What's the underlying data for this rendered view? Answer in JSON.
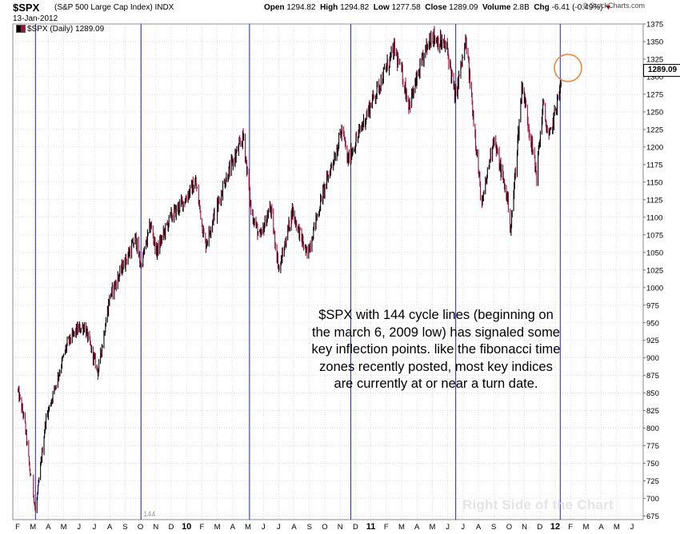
{
  "header": {
    "symbol": "$SPX",
    "symbol_desc": "(S&P 500 Large Cap Index) INDX",
    "date": "13-Jan-2012",
    "open_label": "Open",
    "open": "1294.82",
    "high_label": "High",
    "high": "1294.82",
    "low_label": "Low",
    "low": "1277.58",
    "close_label": "Close",
    "close": "1289.09",
    "volume_label": "Volume",
    "volume": "2.8B",
    "chg_label": "Chg",
    "chg": "-6.41 (-0.49%)",
    "brand": "© StockCharts.com",
    "legend": "$SPX (Daily) 1289.09"
  },
  "annotation": {
    "note_lines": [
      "$SPX with 144 cycle lines (beginning on",
      "the march 6, 2009 low) has signaled some",
      "key inflection points.  like the fibonacci time",
      "zones recently posted, most key indices",
      "are currently at or near a turn date."
    ],
    "cycle_label": "144",
    "watermark": "Right Side of the Chart",
    "last_price": "1289.09"
  },
  "colors": {
    "up": "#000000",
    "down": "#a0103a",
    "cycle_line": "#2020c0",
    "grid": "#c8c8c8",
    "circle": "#f08030"
  },
  "chart_data": {
    "type": "line",
    "title": "",
    "xlabel": "",
    "ylabel": "",
    "ylim": [
      670,
      1375
    ],
    "y_ticks": [
      675,
      700,
      725,
      750,
      775,
      800,
      825,
      850,
      875,
      900,
      925,
      950,
      975,
      1000,
      1025,
      1050,
      1075,
      1100,
      1125,
      1150,
      1175,
      1200,
      1225,
      1250,
      1275,
      1300,
      1325,
      1350,
      1375
    ],
    "x_tick_labels": [
      "F",
      "M",
      "A",
      "M",
      "J",
      "J",
      "A",
      "S",
      "O",
      "N",
      "D",
      "10",
      "F",
      "M",
      "A",
      "M",
      "J",
      "J",
      "A",
      "S",
      "O",
      "N",
      "D",
      "11",
      "F",
      "M",
      "A",
      "M",
      "J",
      "J",
      "A",
      "S",
      "O",
      "N",
      "D",
      "12",
      "F",
      "M",
      "A",
      "M",
      "J"
    ],
    "x_tick_bold": [
      "10",
      "11",
      "12"
    ],
    "series": [
      {
        "x": [
          "2009-02-01",
          "2009-02-15",
          "2009-03-06",
          "2009-03-26",
          "2009-04-15",
          "2009-05-08",
          "2009-05-28",
          "2009-06-12",
          "2009-07-08",
          "2009-07-31",
          "2009-08-27",
          "2009-09-22",
          "2009-10-02",
          "2009-10-21",
          "2009-11-02",
          "2009-11-30",
          "2009-12-28",
          "2010-01-19",
          "2010-02-08",
          "2010-03-15",
          "2010-04-23",
          "2010-05-07",
          "2010-05-25",
          "2010-06-15",
          "2010-07-02",
          "2010-07-28",
          "2010-08-27",
          "2010-09-30",
          "2010-11-05",
          "2010-11-16",
          "2010-12-31",
          "2011-02-18",
          "2011-03-16",
          "2011-04-29",
          "2011-05-31",
          "2011-06-16",
          "2011-07-07",
          "2011-08-08",
          "2011-08-31",
          "2011-09-30",
          "2011-10-04",
          "2011-10-27",
          "2011-11-25",
          "2011-12-07",
          "2011-12-19",
          "2012-01-13"
        ],
        "values": [
          855,
          810,
          680,
          810,
          860,
          920,
          940,
          945,
          880,
          985,
          1030,
          1070,
          1030,
          1090,
          1050,
          1100,
          1125,
          1150,
          1060,
          1150,
          1215,
          1110,
          1070,
          1115,
          1025,
          1110,
          1045,
          1140,
          1225,
          1180,
          1260,
          1340,
          1260,
          1360,
          1340,
          1270,
          1350,
          1115,
          1215,
          1120,
          1080,
          1290,
          1160,
          1260,
          1210,
          1289
        ]
      }
    ],
    "cycle_lines": [
      "2009-03-06",
      "2009-10-02",
      "2010-05-04",
      "2010-11-22",
      "2011-06-17",
      "2012-01-11"
    ],
    "legend": "top-left",
    "grid": true
  }
}
